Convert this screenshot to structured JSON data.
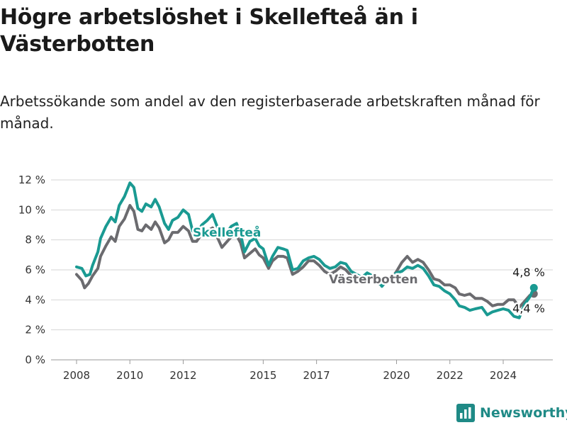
{
  "title": "Högre arbetslöshet i Skellefteå än i Västerbotten",
  "subtitle": "Arbetssökande som andel av den registerbaserade arbetskraften månad för månad.",
  "brand": {
    "name": "Newsworthy",
    "icon": "bar-chart-logo-icon",
    "color": "#1f8a86"
  },
  "chart_data": {
    "type": "line",
    "y_unit": "%",
    "ylim": [
      0,
      12
    ],
    "y_ticks": [
      {
        "value": 0,
        "label": "0 %"
      },
      {
        "value": 2,
        "label": "2 %"
      },
      {
        "value": 4,
        "label": "4 %"
      },
      {
        "value": 6,
        "label": "6 %"
      },
      {
        "value": 8,
        "label": "8 %"
      },
      {
        "value": 10,
        "label": "10 %"
      },
      {
        "value": 12,
        "label": "12 %"
      }
    ],
    "xlim": [
      2007.6,
      2025.9
    ],
    "x_ticks": [
      {
        "value": 2008,
        "label": "2008"
      },
      {
        "value": 2010,
        "label": "2010"
      },
      {
        "value": 2012,
        "label": "2012"
      },
      {
        "value": 2015,
        "label": "2015"
      },
      {
        "value": 2017,
        "label": "2017"
      },
      {
        "value": 2020,
        "label": "2020"
      },
      {
        "value": 2022,
        "label": "2022"
      },
      {
        "value": 2024,
        "label": "2024"
      }
    ],
    "grid": "horizontal",
    "legend": "inline labels",
    "series": [
      {
        "name": "Skellefteå",
        "color": "#1a9a92",
        "end_label": "4,8 %",
        "points": [
          [
            2008.0,
            6.2
          ],
          [
            2008.2,
            6.1
          ],
          [
            2008.35,
            5.6
          ],
          [
            2008.5,
            5.7
          ],
          [
            2008.6,
            6.3
          ],
          [
            2008.8,
            7.2
          ],
          [
            2008.9,
            8.1
          ],
          [
            2009.1,
            8.9
          ],
          [
            2009.3,
            9.5
          ],
          [
            2009.45,
            9.2
          ],
          [
            2009.6,
            10.3
          ],
          [
            2009.8,
            10.9
          ],
          [
            2010.0,
            11.8
          ],
          [
            2010.15,
            11.5
          ],
          [
            2010.3,
            10.1
          ],
          [
            2010.45,
            9.9
          ],
          [
            2010.6,
            10.4
          ],
          [
            2010.8,
            10.2
          ],
          [
            2010.95,
            10.7
          ],
          [
            2011.1,
            10.2
          ],
          [
            2011.3,
            9.1
          ],
          [
            2011.45,
            8.7
          ],
          [
            2011.6,
            9.3
          ],
          [
            2011.8,
            9.5
          ],
          [
            2012.0,
            10.0
          ],
          [
            2012.2,
            9.7
          ],
          [
            2012.35,
            8.6
          ],
          [
            2012.5,
            8.4
          ],
          [
            2012.7,
            9.0
          ],
          [
            2012.9,
            9.3
          ],
          [
            2013.1,
            9.7
          ],
          [
            2013.25,
            9.0
          ],
          [
            2013.45,
            8.2
          ],
          [
            2013.6,
            8.4
          ],
          [
            2013.8,
            8.9
          ],
          [
            2014.0,
            9.1
          ],
          [
            2014.15,
            8.4
          ],
          [
            2014.3,
            7.2
          ],
          [
            2014.5,
            7.9
          ],
          [
            2014.7,
            8.1
          ],
          [
            2014.85,
            7.6
          ],
          [
            2015.0,
            7.4
          ],
          [
            2015.2,
            6.3
          ],
          [
            2015.35,
            6.9
          ],
          [
            2015.55,
            7.5
          ],
          [
            2015.75,
            7.4
          ],
          [
            2015.9,
            7.3
          ],
          [
            2016.1,
            6.0
          ],
          [
            2016.3,
            6.1
          ],
          [
            2016.5,
            6.6
          ],
          [
            2016.7,
            6.8
          ],
          [
            2016.9,
            6.9
          ],
          [
            2017.1,
            6.7
          ],
          [
            2017.3,
            6.3
          ],
          [
            2017.5,
            6.1
          ],
          [
            2017.7,
            6.2
          ],
          [
            2017.9,
            6.5
          ],
          [
            2018.1,
            6.4
          ],
          [
            2018.3,
            5.9
          ],
          [
            2018.5,
            5.7
          ],
          [
            2018.7,
            5.5
          ],
          [
            2018.9,
            5.8
          ],
          [
            2019.1,
            5.6
          ],
          [
            2019.3,
            5.3
          ],
          [
            2019.45,
            4.9
          ],
          [
            2019.6,
            5.2
          ],
          [
            2019.8,
            5.5
          ],
          [
            2020.0,
            5.8
          ],
          [
            2020.2,
            5.9
          ],
          [
            2020.4,
            6.2
          ],
          [
            2020.6,
            6.1
          ],
          [
            2020.8,
            6.3
          ],
          [
            2021.0,
            6.1
          ],
          [
            2021.2,
            5.6
          ],
          [
            2021.4,
            5.0
          ],
          [
            2021.6,
            4.9
          ],
          [
            2021.8,
            4.6
          ],
          [
            2022.0,
            4.4
          ],
          [
            2022.2,
            4.0
          ],
          [
            2022.35,
            3.6
          ],
          [
            2022.55,
            3.5
          ],
          [
            2022.75,
            3.3
          ],
          [
            2022.95,
            3.4
          ],
          [
            2023.2,
            3.5
          ],
          [
            2023.4,
            3.0
          ],
          [
            2023.6,
            3.2
          ],
          [
            2023.8,
            3.3
          ],
          [
            2024.0,
            3.4
          ],
          [
            2024.2,
            3.3
          ],
          [
            2024.4,
            2.9
          ],
          [
            2024.6,
            2.8
          ],
          [
            2024.8,
            3.7
          ],
          [
            2025.0,
            4.2
          ],
          [
            2025.15,
            4.8
          ]
        ]
      },
      {
        "name": "Västerbotten",
        "color": "#6b6b6f",
        "end_label": "4,4 %",
        "points": [
          [
            2008.0,
            5.7
          ],
          [
            2008.2,
            5.3
          ],
          [
            2008.3,
            4.8
          ],
          [
            2008.45,
            5.1
          ],
          [
            2008.6,
            5.6
          ],
          [
            2008.8,
            6.1
          ],
          [
            2008.9,
            6.9
          ],
          [
            2009.1,
            7.6
          ],
          [
            2009.3,
            8.2
          ],
          [
            2009.45,
            7.9
          ],
          [
            2009.6,
            8.9
          ],
          [
            2009.8,
            9.4
          ],
          [
            2010.0,
            10.3
          ],
          [
            2010.15,
            9.9
          ],
          [
            2010.3,
            8.7
          ],
          [
            2010.45,
            8.6
          ],
          [
            2010.6,
            9.0
          ],
          [
            2010.8,
            8.7
          ],
          [
            2010.95,
            9.2
          ],
          [
            2011.1,
            8.8
          ],
          [
            2011.3,
            7.8
          ],
          [
            2011.45,
            8.0
          ],
          [
            2011.6,
            8.5
          ],
          [
            2011.8,
            8.5
          ],
          [
            2012.0,
            8.9
          ],
          [
            2012.2,
            8.6
          ],
          [
            2012.35,
            7.9
          ],
          [
            2012.5,
            7.9
          ],
          [
            2012.7,
            8.4
          ],
          [
            2012.9,
            8.6
          ],
          [
            2013.1,
            8.8
          ],
          [
            2013.25,
            8.3
          ],
          [
            2013.45,
            7.5
          ],
          [
            2013.6,
            7.8
          ],
          [
            2013.8,
            8.2
          ],
          [
            2014.0,
            8.3
          ],
          [
            2014.15,
            7.8
          ],
          [
            2014.3,
            6.8
          ],
          [
            2014.5,
            7.1
          ],
          [
            2014.7,
            7.4
          ],
          [
            2014.85,
            7.0
          ],
          [
            2015.0,
            6.8
          ],
          [
            2015.2,
            6.1
          ],
          [
            2015.35,
            6.6
          ],
          [
            2015.55,
            6.9
          ],
          [
            2015.75,
            6.9
          ],
          [
            2015.9,
            6.8
          ],
          [
            2016.1,
            5.7
          ],
          [
            2016.3,
            5.9
          ],
          [
            2016.5,
            6.2
          ],
          [
            2016.7,
            6.6
          ],
          [
            2016.9,
            6.6
          ],
          [
            2017.1,
            6.3
          ],
          [
            2017.3,
            5.9
          ],
          [
            2017.5,
            5.7
          ],
          [
            2017.7,
            5.9
          ],
          [
            2017.9,
            6.2
          ],
          [
            2018.1,
            6.0
          ],
          [
            2018.3,
            5.6
          ],
          [
            2018.5,
            5.4
          ],
          [
            2018.7,
            5.3
          ],
          [
            2018.9,
            5.5
          ],
          [
            2019.1,
            5.4
          ],
          [
            2019.3,
            5.1
          ],
          [
            2019.45,
            5.0
          ],
          [
            2019.6,
            5.1
          ],
          [
            2019.8,
            5.4
          ],
          [
            2020.0,
            5.9
          ],
          [
            2020.2,
            6.5
          ],
          [
            2020.4,
            6.9
          ],
          [
            2020.6,
            6.5
          ],
          [
            2020.8,
            6.7
          ],
          [
            2021.0,
            6.5
          ],
          [
            2021.2,
            6.0
          ],
          [
            2021.4,
            5.4
          ],
          [
            2021.6,
            5.3
          ],
          [
            2021.8,
            5.0
          ],
          [
            2022.0,
            5.0
          ],
          [
            2022.2,
            4.8
          ],
          [
            2022.35,
            4.4
          ],
          [
            2022.55,
            4.3
          ],
          [
            2022.75,
            4.4
          ],
          [
            2022.95,
            4.1
          ],
          [
            2023.2,
            4.1
          ],
          [
            2023.4,
            3.9
          ],
          [
            2023.6,
            3.6
          ],
          [
            2023.8,
            3.7
          ],
          [
            2024.0,
            3.7
          ],
          [
            2024.2,
            4.0
          ],
          [
            2024.4,
            4.0
          ],
          [
            2024.6,
            3.5
          ],
          [
            2024.8,
            3.9
          ],
          [
            2025.0,
            4.3
          ],
          [
            2025.15,
            4.4
          ]
        ]
      }
    ]
  }
}
